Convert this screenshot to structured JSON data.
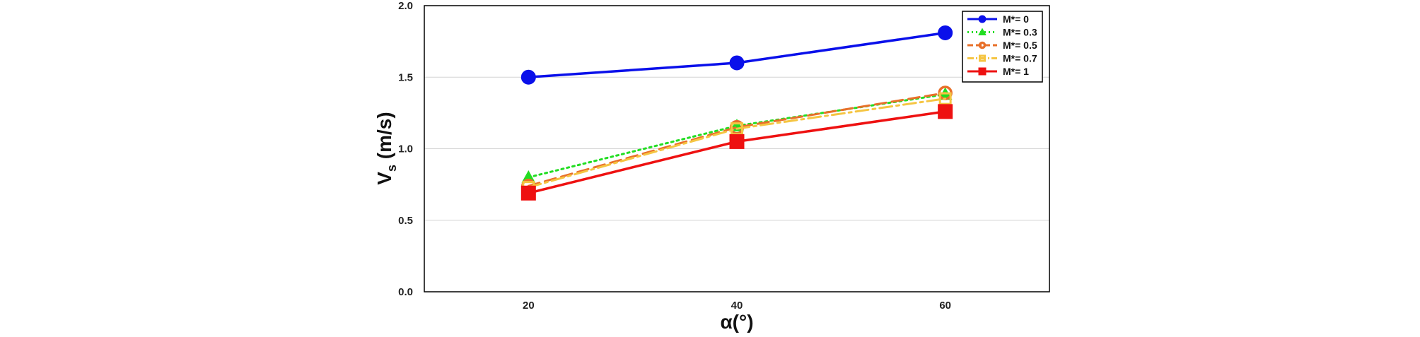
{
  "chart_data": {
    "type": "line",
    "xlabel": "α(°)",
    "ylabel_main": "V",
    "ylabel_sub": "s",
    "ylabel_unit": " (m/s)",
    "x": [
      20,
      40,
      60
    ],
    "x_ticks": [
      "20",
      "40",
      "60"
    ],
    "xlim": [
      10,
      70
    ],
    "ylim": [
      0,
      2
    ],
    "y_ticks": [
      "0.0",
      "0.5",
      "1.0",
      "1.5",
      "2.0"
    ],
    "grid": "horizontal",
    "legend_position": "top-right",
    "series": [
      {
        "name": "M*= 0",
        "values": [
          1.5,
          1.6,
          1.81
        ],
        "color": "#0a10ea",
        "dash": "solid",
        "marker": "circle-filled"
      },
      {
        "name": "M*= 0.3",
        "values": [
          0.8,
          1.16,
          1.38
        ],
        "color": "#22dd22",
        "dash": "dotted",
        "marker": "triangle-filled"
      },
      {
        "name": "M*= 0.5",
        "values": [
          0.74,
          1.15,
          1.39
        ],
        "color": "#e8702a",
        "dash": "dashed",
        "marker": "circle-open"
      },
      {
        "name": "M*= 0.7",
        "values": [
          0.73,
          1.14,
          1.35
        ],
        "color": "#f5c542",
        "dash": "dashdot",
        "marker": "square-open"
      },
      {
        "name": "M*= 1",
        "values": [
          0.69,
          1.05,
          1.26
        ],
        "color": "#ee1111",
        "dash": "solid",
        "marker": "square-filled"
      }
    ]
  }
}
